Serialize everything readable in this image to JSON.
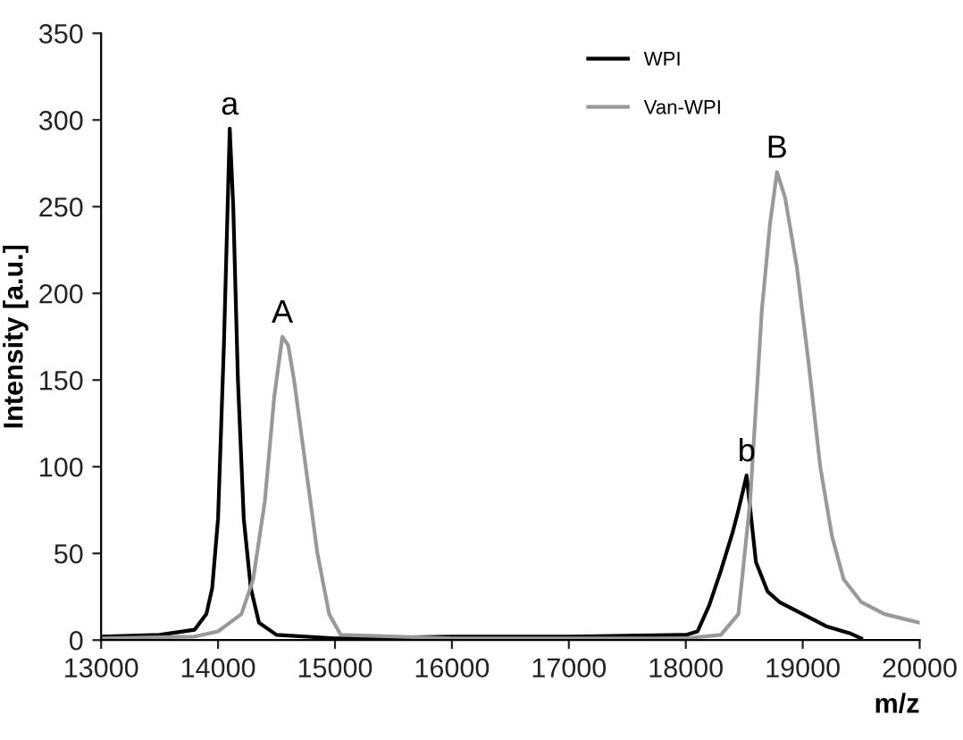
{
  "chart_data": {
    "type": "line",
    "xlabel": "m/z",
    "ylabel": "Intensity [a.u.]",
    "xlim": [
      13000,
      20000
    ],
    "xticks": [
      13000,
      14000,
      15000,
      16000,
      17000,
      18000,
      19000,
      20000
    ],
    "ylim": [
      0,
      350
    ],
    "yticks": [
      0,
      50,
      100,
      150,
      200,
      250,
      300,
      350
    ],
    "grid": false,
    "legend": "top right",
    "line_style": "solid",
    "marker": "none",
    "series": [
      {
        "name": "WPI",
        "color": "#000000",
        "x": [
          13000,
          13500,
          13800,
          13900,
          13950,
          14000,
          14050,
          14100,
          14130,
          14170,
          14220,
          14280,
          14350,
          14500,
          15000,
          16000,
          17000,
          18000,
          18100,
          18200,
          18300,
          18400,
          18450,
          18520,
          18560,
          18600,
          18700,
          18800,
          19000,
          19200,
          19400,
          19500
        ],
        "values": [
          2,
          3,
          6,
          15,
          30,
          70,
          170,
          295,
          250,
          150,
          70,
          30,
          10,
          3,
          1,
          2,
          2,
          3,
          5,
          20,
          40,
          62,
          75,
          95,
          70,
          45,
          28,
          22,
          15,
          8,
          4,
          1
        ]
      },
      {
        "name": "Van-WPI",
        "color": "#999999",
        "x": [
          13000,
          13800,
          14000,
          14200,
          14300,
          14400,
          14480,
          14550,
          14600,
          14650,
          14750,
          14850,
          14950,
          15050,
          16000,
          17000,
          18000,
          18300,
          18450,
          18550,
          18650,
          18720,
          18780,
          18850,
          18950,
          19050,
          19150,
          19250,
          19350,
          19500,
          19700,
          20000
        ],
        "values": [
          1,
          2,
          5,
          15,
          35,
          80,
          140,
          175,
          170,
          150,
          100,
          50,
          15,
          3,
          1,
          1,
          1,
          3,
          15,
          80,
          190,
          240,
          270,
          255,
          215,
          160,
          100,
          60,
          35,
          22,
          15,
          10
        ]
      }
    ],
    "annotations": [
      {
        "text": "a",
        "x": 14100,
        "y": 295
      },
      {
        "text": "A",
        "x": 14550,
        "y": 175
      },
      {
        "text": "b",
        "x": 18520,
        "y": 95
      },
      {
        "text": "B",
        "x": 18780,
        "y": 270
      }
    ]
  }
}
